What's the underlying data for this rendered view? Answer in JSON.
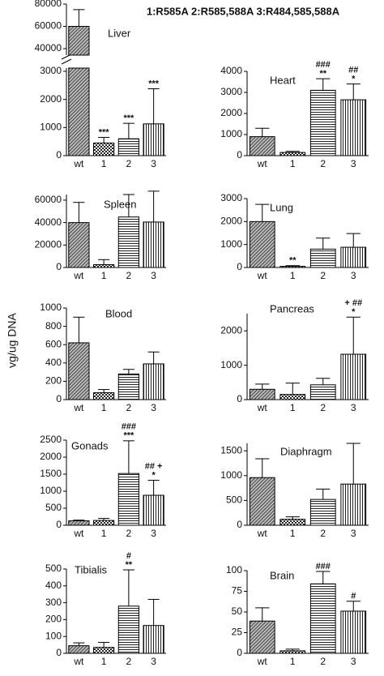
{
  "header": "1:R585A  2:R585,588A  3:R484,585,588A",
  "y_label": "vg/ug DNA",
  "chart_data": [
    {
      "type": "bar",
      "title": "Liver",
      "categories": [
        "wt",
        "1",
        "2",
        "3"
      ],
      "values": [
        60000,
        450,
        600,
        1130
      ],
      "errors": [
        15000,
        200,
        550,
        1250
      ],
      "annotations": [
        [],
        [
          "***"
        ],
        [
          "***"
        ],
        [
          "***"
        ]
      ],
      "ylim": [
        0,
        3000
      ],
      "yticks": [
        0,
        1000,
        2000,
        3000
      ],
      "axis_break": {
        "ylim": [
          40000,
          80000
        ],
        "yticks": [
          40000,
          60000,
          80000
        ]
      }
    },
    {
      "type": "bar",
      "title": "Heart",
      "categories": [
        "wt",
        "1",
        "2",
        "3"
      ],
      "values": [
        900,
        150,
        3100,
        2650
      ],
      "errors": [
        400,
        50,
        550,
        750
      ],
      "annotations": [
        [],
        [],
        [
          "###",
          "**"
        ],
        [
          "##",
          "*"
        ]
      ],
      "ylim": [
        0,
        4000
      ],
      "yticks": [
        0,
        1000,
        2000,
        3000,
        4000
      ]
    },
    {
      "type": "bar",
      "title": "Spleen",
      "categories": [
        "wt",
        "1",
        "2",
        "3"
      ],
      "values": [
        40000,
        2500,
        45000,
        40500
      ],
      "errors": [
        18000,
        4500,
        20000,
        27500
      ],
      "annotations": [
        [],
        [],
        [],
        []
      ],
      "ylim": [
        0,
        65000
      ],
      "yticks": [
        0,
        20000,
        40000,
        60000
      ]
    },
    {
      "type": "bar",
      "title": "Lung",
      "categories": [
        "wt",
        "1",
        "2",
        "3"
      ],
      "values": [
        2000,
        50,
        800,
        880
      ],
      "errors": [
        750,
        30,
        480,
        600
      ],
      "annotations": [
        [],
        [
          "**"
        ],
        [],
        []
      ],
      "ylim": [
        0,
        3000
      ],
      "yticks": [
        0,
        1000,
        2000,
        3000
      ]
    },
    {
      "type": "bar",
      "title": "Blood",
      "categories": [
        "wt",
        "1",
        "2",
        "3"
      ],
      "values": [
        620,
        75,
        280,
        390
      ],
      "errors": [
        280,
        35,
        50,
        130
      ],
      "annotations": [
        [],
        [],
        [],
        []
      ],
      "ylim": [
        0,
        1000
      ],
      "yticks": [
        0,
        200,
        400,
        600,
        800,
        1000
      ]
    },
    {
      "type": "bar",
      "title": "Pancreas",
      "categories": [
        "wt",
        "1",
        "2",
        "3"
      ],
      "values": [
        300,
        150,
        430,
        1320
      ],
      "errors": [
        150,
        330,
        190,
        1080
      ],
      "annotations": [
        [],
        [],
        [],
        [
          "+  ##",
          "*"
        ]
      ],
      "ylim": [
        0,
        2500
      ],
      "yticks": [
        0,
        1000,
        2000
      ]
    },
    {
      "type": "bar",
      "title": "Gonads",
      "categories": [
        "wt",
        "1",
        "2",
        "3"
      ],
      "values": [
        130,
        140,
        1520,
        880
      ],
      "errors": [
        20,
        60,
        960,
        440
      ],
      "annotations": [
        [],
        [],
        [
          "###",
          "***"
        ],
        [
          "##  +",
          "*"
        ]
      ],
      "ylim": [
        0,
        2500
      ],
      "yticks": [
        0,
        500,
        1000,
        1500,
        2000,
        2500
      ]
    },
    {
      "type": "bar",
      "title": "Diaphragm",
      "categories": [
        "wt",
        "1",
        "2",
        "3"
      ],
      "values": [
        960,
        120,
        520,
        830
      ],
      "errors": [
        380,
        50,
        210,
        820
      ],
      "annotations": [
        [],
        [],
        [],
        []
      ],
      "ylim": [
        0,
        1650
      ],
      "yticks": [
        0,
        500,
        1000,
        1500
      ]
    },
    {
      "type": "bar",
      "title": "Tibialis",
      "categories": [
        "wt",
        "1",
        "2",
        "3"
      ],
      "values": [
        45,
        35,
        280,
        165
      ],
      "errors": [
        17,
        30,
        215,
        155
      ],
      "annotations": [
        [],
        [],
        [
          "#",
          "**"
        ],
        []
      ],
      "ylim": [
        0,
        500
      ],
      "yticks": [
        0,
        100,
        200,
        300,
        400,
        500
      ]
    },
    {
      "type": "bar",
      "title": "Brain",
      "categories": [
        "wt",
        "1",
        "2",
        "3"
      ],
      "values": [
        39,
        3,
        84,
        51
      ],
      "errors": [
        16,
        2,
        15,
        12
      ],
      "annotations": [
        [],
        [],
        [
          "###"
        ],
        [
          "#"
        ]
      ],
      "ylim": [
        0,
        100
      ],
      "yticks": [
        0,
        25,
        50,
        75,
        100
      ]
    }
  ]
}
